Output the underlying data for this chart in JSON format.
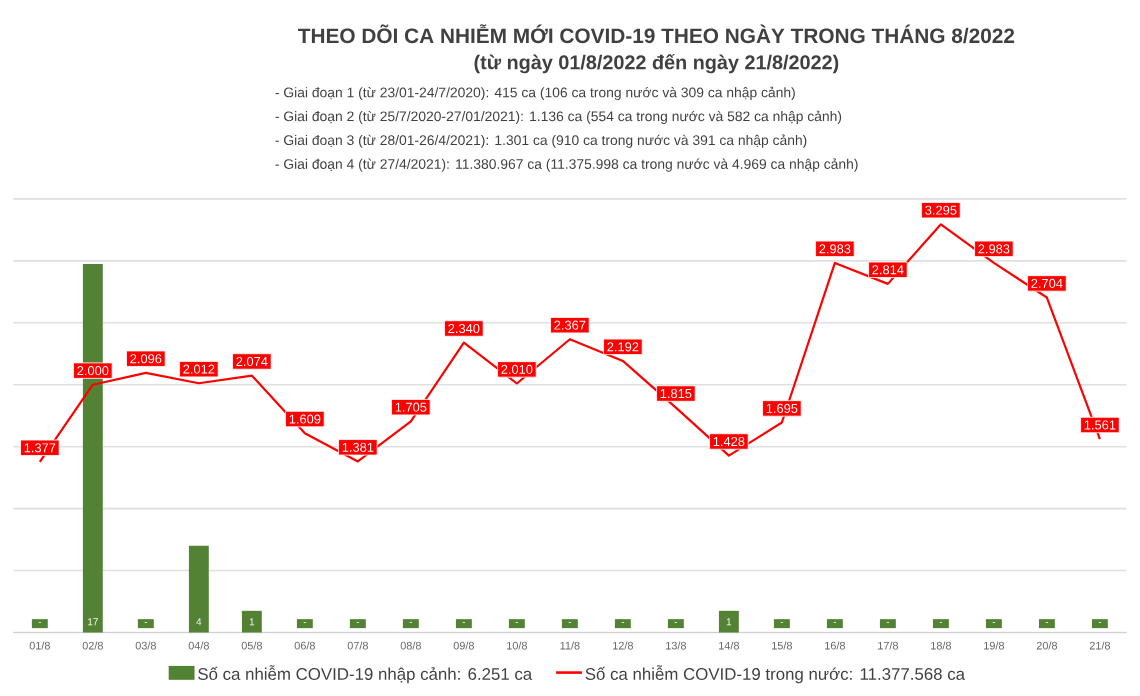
{
  "chart_data": {
    "type": "bar",
    "title": "THEO DÕI CA NHIỄM MỚI COVID-19 THEO NGÀY TRONG THÁNG 8/2022",
    "subtitle": "(từ ngày 01/8/2022 đến ngày 21/8/2022)",
    "annotations": [
      "- Giai đoạn 1 (từ 23/01-24/7/2020): 415 ca (106 ca trong nước và 309 ca nhập cảnh)",
      "- Giai đoạn 2 (từ 25/7/2020-27/01/2021): 1.136 ca (554 ca trong nước và 582 ca nhập cảnh)",
      "- Giai đoạn 3 (từ 28/01-26/4/2021): 1.301 ca (910 ca trong nước và 391 ca nhập cảnh)",
      "- Giai đoạn 4 (từ 27/4/2021): 11.380.967 ca (11.375.998 ca trong nước và 4.969 ca nhập cảnh)"
    ],
    "categories": [
      "01/8",
      "02/8",
      "03/8",
      "04/8",
      "05/8",
      "06/8",
      "07/8",
      "08/8",
      "09/8",
      "10/8",
      "11/8",
      "12/8",
      "13/8",
      "14/8",
      "15/8",
      "16/8",
      "17/8",
      "18/8",
      "19/8",
      "20/8",
      "21/8"
    ],
    "series": [
      {
        "name": "Số ca nhiễm COVID-19 nhập cảnh: 6.251 ca",
        "color": "#548235",
        "values": [
          0,
          17,
          0,
          4,
          1,
          0,
          0,
          0,
          0,
          0,
          0,
          0,
          0,
          1,
          0,
          0,
          0,
          0,
          0,
          0,
          0
        ],
        "value_labels": [
          "-",
          "17",
          "-",
          "4",
          "1",
          "-",
          "-",
          "-",
          "-",
          "-",
          "-",
          "-",
          "-",
          "1",
          "-",
          "-",
          "-",
          "-",
          "-",
          "-",
          "-"
        ]
      },
      {
        "name": "Số ca nhiễm COVID-19 trong nước: 11.377.568 ca",
        "type": "line",
        "axis": "y2",
        "color": "#ff0000",
        "values": [
          1377,
          2000,
          2096,
          2012,
          2074,
          1609,
          1381,
          1705,
          2340,
          2010,
          2367,
          2192,
          1815,
          1428,
          1695,
          2983,
          2814,
          3295,
          2983,
          2704,
          1561
        ],
        "value_labels": [
          "1.377",
          "2.000",
          "2.096",
          "2.012",
          "2.074",
          "1.609",
          "1.381",
          "1.705",
          "2.340",
          "2.010",
          "2.367",
          "2.192",
          "1.815",
          "1.428",
          "1.695",
          "2.983",
          "2.814",
          "3.295",
          "2.983",
          "2.704",
          "1.561"
        ]
      }
    ],
    "ylim": [
      0,
      20
    ],
    "y2lim": [
      0,
      3500
    ],
    "y2ticks": [
      {
        "value": 0,
        "label": null
      },
      {
        "value": 500,
        "label": null
      },
      {
        "value": 1000,
        "label": null
      },
      {
        "value": 1500,
        "label": null
      },
      {
        "value": 2000,
        "label": null
      },
      {
        "value": 2500,
        "label": null
      },
      {
        "value": 3000,
        "label": null
      },
      {
        "value": 3500,
        "label": null
      }
    ],
    "grid": true,
    "tick_labels": "x",
    "legend": "bottom",
    "marker": "none"
  }
}
